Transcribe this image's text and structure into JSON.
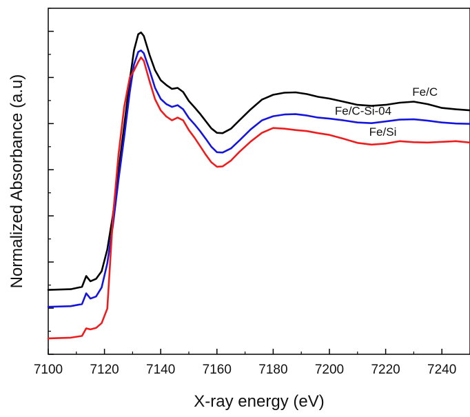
{
  "chart_data": {
    "type": "line",
    "title": "",
    "xlabel": "X-ray energy (eV)",
    "ylabel": "Normalized Absorbance (a.u)",
    "xlim": [
      7100,
      7250
    ],
    "ylim": [
      0,
      1
    ],
    "x_ticks": [
      7100,
      7120,
      7140,
      7160,
      7180,
      7200,
      7220,
      7240
    ],
    "y_ticks_labeled": false,
    "grid": false,
    "legend": "inline labels",
    "series": [
      {
        "name": "Fe/C",
        "color": "#000000",
        "points": [
          [
            7100,
            0.186
          ],
          [
            7108,
            0.188
          ],
          [
            7112,
            0.195
          ],
          [
            7113.5,
            0.226
          ],
          [
            7115,
            0.211
          ],
          [
            7117,
            0.218
          ],
          [
            7119,
            0.24
          ],
          [
            7121,
            0.303
          ],
          [
            7123,
            0.402
          ],
          [
            7125,
            0.53
          ],
          [
            7127,
            0.66
          ],
          [
            7129,
            0.792
          ],
          [
            7130.5,
            0.878
          ],
          [
            7132,
            0.925
          ],
          [
            7133,
            0.93
          ],
          [
            7134,
            0.92
          ],
          [
            7136,
            0.866
          ],
          [
            7138,
            0.821
          ],
          [
            7140,
            0.792
          ],
          [
            7142,
            0.778
          ],
          [
            7144,
            0.767
          ],
          [
            7146,
            0.77
          ],
          [
            7148,
            0.758
          ],
          [
            7150,
            0.732
          ],
          [
            7152,
            0.714
          ],
          [
            7154,
            0.695
          ],
          [
            7156,
            0.674
          ],
          [
            7158,
            0.653
          ],
          [
            7160,
            0.64
          ],
          [
            7162,
            0.639
          ],
          [
            7165,
            0.652
          ],
          [
            7168,
            0.676
          ],
          [
            7172,
            0.708
          ],
          [
            7176,
            0.736
          ],
          [
            7180,
            0.75
          ],
          [
            7184,
            0.756
          ],
          [
            7188,
            0.757
          ],
          [
            7192,
            0.752
          ],
          [
            7196,
            0.744
          ],
          [
            7200,
            0.739
          ],
          [
            7205,
            0.73
          ],
          [
            7210,
            0.721
          ],
          [
            7215,
            0.718
          ],
          [
            7220,
            0.721
          ],
          [
            7225,
            0.727
          ],
          [
            7230,
            0.73
          ],
          [
            7235,
            0.723
          ],
          [
            7240,
            0.712
          ],
          [
            7245,
            0.708
          ],
          [
            7250,
            0.705
          ]
        ]
      },
      {
        "name": "Fe/C-Si-04",
        "color": "#1515dd",
        "points": [
          [
            7100,
            0.137
          ],
          [
            7108,
            0.139
          ],
          [
            7112,
            0.145
          ],
          [
            7113.5,
            0.176
          ],
          [
            7115,
            0.161
          ],
          [
            7117,
            0.167
          ],
          [
            7119,
            0.193
          ],
          [
            7121,
            0.263
          ],
          [
            7123,
            0.372
          ],
          [
            7125,
            0.505
          ],
          [
            7127,
            0.628
          ],
          [
            7129,
            0.758
          ],
          [
            7130.5,
            0.837
          ],
          [
            7132,
            0.874
          ],
          [
            7133,
            0.878
          ],
          [
            7134,
            0.87
          ],
          [
            7136,
            0.822
          ],
          [
            7138,
            0.77
          ],
          [
            7140,
            0.738
          ],
          [
            7142,
            0.723
          ],
          [
            7144,
            0.715
          ],
          [
            7146,
            0.72
          ],
          [
            7148,
            0.708
          ],
          [
            7150,
            0.683
          ],
          [
            7152,
            0.665
          ],
          [
            7154,
            0.645
          ],
          [
            7156,
            0.623
          ],
          [
            7158,
            0.6
          ],
          [
            7160,
            0.584
          ],
          [
            7162,
            0.583
          ],
          [
            7165,
            0.595
          ],
          [
            7168,
            0.618
          ],
          [
            7172,
            0.65
          ],
          [
            7176,
            0.676
          ],
          [
            7180,
            0.688
          ],
          [
            7184,
            0.693
          ],
          [
            7188,
            0.694
          ],
          [
            7192,
            0.69
          ],
          [
            7196,
            0.684
          ],
          [
            7200,
            0.681
          ],
          [
            7205,
            0.676
          ],
          [
            7210,
            0.67
          ],
          [
            7215,
            0.668
          ],
          [
            7220,
            0.673
          ],
          [
            7225,
            0.678
          ],
          [
            7230,
            0.679
          ],
          [
            7235,
            0.675
          ],
          [
            7240,
            0.67
          ],
          [
            7245,
            0.667
          ],
          [
            7250,
            0.666
          ]
        ]
      },
      {
        "name": "Fe/Si",
        "color": "#ee1c1c",
        "points": [
          [
            7100,
            0.046
          ],
          [
            7108,
            0.048
          ],
          [
            7112,
            0.053
          ],
          [
            7113.5,
            0.075
          ],
          [
            7115,
            0.072
          ],
          [
            7117,
            0.076
          ],
          [
            7119,
            0.09
          ],
          [
            7121,
            0.132
          ],
          [
            7122,
            0.265
          ],
          [
            7123,
            0.395
          ],
          [
            7125,
            0.578
          ],
          [
            7127,
            0.715
          ],
          [
            7129,
            0.8
          ],
          [
            7130.5,
            0.82
          ],
          [
            7132,
            0.845
          ],
          [
            7133,
            0.858
          ],
          [
            7134,
            0.848
          ],
          [
            7136,
            0.79
          ],
          [
            7138,
            0.737
          ],
          [
            7140,
            0.705
          ],
          [
            7142,
            0.687
          ],
          [
            7144,
            0.676
          ],
          [
            7146,
            0.684
          ],
          [
            7148,
            0.676
          ],
          [
            7150,
            0.648
          ],
          [
            7152,
            0.626
          ],
          [
            7154,
            0.602
          ],
          [
            7156,
            0.577
          ],
          [
            7158,
            0.555
          ],
          [
            7160,
            0.542
          ],
          [
            7162,
            0.543
          ],
          [
            7165,
            0.56
          ],
          [
            7168,
            0.585
          ],
          [
            7172,
            0.615
          ],
          [
            7176,
            0.64
          ],
          [
            7180,
            0.654
          ],
          [
            7184,
            0.652
          ],
          [
            7188,
            0.648
          ],
          [
            7192,
            0.645
          ],
          [
            7196,
            0.639
          ],
          [
            7200,
            0.634
          ],
          [
            7205,
            0.623
          ],
          [
            7210,
            0.611
          ],
          [
            7215,
            0.606
          ],
          [
            7220,
            0.609
          ],
          [
            7225,
            0.616
          ],
          [
            7230,
            0.613
          ],
          [
            7235,
            0.612
          ],
          [
            7240,
            0.614
          ],
          [
            7245,
            0.616
          ],
          [
            7250,
            0.612
          ]
        ]
      }
    ]
  }
}
